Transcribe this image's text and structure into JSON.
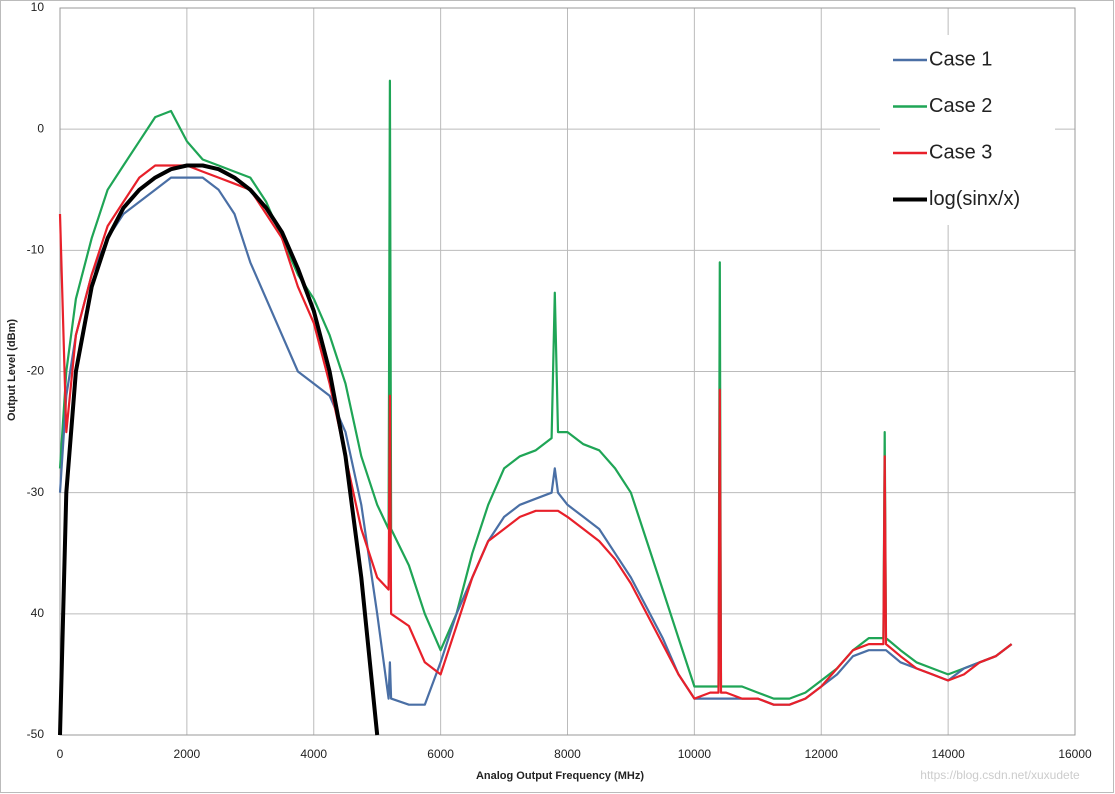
{
  "chart_data": {
    "type": "line",
    "xlabel": "Analog Output Frequency (MHz)",
    "ylabel": "Output Level (dBm)",
    "watermark": "https://blog.csdn.net/xuxudete",
    "xlim": [
      0,
      16000
    ],
    "ylim": [
      -50,
      10
    ],
    "xticks": [
      0,
      2000,
      4000,
      6000,
      8000,
      10000,
      12000,
      14000,
      16000
    ],
    "yticks": [
      -50,
      {
        "value": -40,
        "label": "40"
      },
      -30,
      -20,
      -10,
      0,
      10
    ],
    "grid": true,
    "legend": "upper right",
    "x": [
      0,
      100,
      250,
      500,
      750,
      1000,
      1250,
      1500,
      1750,
      2000,
      2250,
      2500,
      2750,
      3000,
      3250,
      3500,
      3750,
      4000,
      4250,
      4500,
      4750,
      5000,
      5180,
      5200,
      5220,
      5500,
      5750,
      6000,
      6250,
      6500,
      6750,
      7000,
      7250,
      7500,
      7750,
      7800,
      7850,
      8000,
      8250,
      8500,
      8750,
      9000,
      9250,
      9500,
      9750,
      10000,
      10250,
      10380,
      10400,
      10420,
      10500,
      10750,
      11000,
      11250,
      11500,
      11750,
      12000,
      12250,
      12500,
      12750,
      12980,
      13000,
      13020,
      13250,
      13500,
      13750,
      14000,
      14250,
      14500,
      14750,
      15000
    ],
    "series": [
      {
        "name": "Case 1",
        "color": "#4a6fa5",
        "values": [
          -30,
          -22,
          -17,
          -12,
          -9,
          -7,
          -6,
          -5,
          -4,
          -4,
          -4,
          -5,
          -7,
          -11,
          -14,
          -17,
          -20,
          -21,
          -22,
          -25,
          -31,
          -40,
          -47,
          -44,
          -47,
          -47.5,
          -47.5,
          -44,
          -40,
          -37,
          -34,
          -32,
          -31,
          -30.5,
          -30,
          -28,
          -30,
          -31,
          -32,
          -33,
          -35,
          -37,
          -39.5,
          -42,
          -45,
          -47,
          -47,
          -47,
          -47,
          -47,
          -47,
          -47,
          -47,
          -47.5,
          -47.5,
          -47,
          -46,
          -45,
          -43.5,
          -43,
          -43,
          -43,
          -43,
          -44,
          -44.5,
          -45,
          -45.5,
          -44.5,
          -44,
          -43.5,
          -42.5
        ]
      },
      {
        "name": "Case 2",
        "color": "#1fa556",
        "values": [
          -28,
          -20,
          -14,
          -9,
          -5,
          -3,
          -1,
          1,
          1.5,
          -1,
          -2.5,
          -3,
          -3.5,
          -4,
          -6,
          -9,
          -12,
          -14,
          -17,
          -21,
          -27,
          -31,
          -33,
          4,
          -33,
          -36,
          -40,
          -43,
          -40,
          -35,
          -31,
          -28,
          -27,
          -26.5,
          -25.5,
          -13.5,
          -25,
          -25,
          -26,
          -26.5,
          -28,
          -30,
          -34,
          -38,
          -42,
          -46,
          -46,
          -46,
          -11,
          -46,
          -46,
          -46,
          -46.5,
          -47,
          -47,
          -46.5,
          -45.5,
          -44.5,
          -43,
          -42,
          -42,
          -25,
          -42,
          -43,
          -44,
          -44.5,
          -45,
          -44.5,
          -44,
          -43.5,
          -42.5
        ]
      },
      {
        "name": "Case 3",
        "color": "#e8202a",
        "values": [
          -7,
          -25,
          -17,
          -12,
          -8,
          -6,
          -4,
          -3,
          -3,
          -3,
          -3.5,
          -4,
          -4.5,
          -5,
          -7,
          -9,
          -13,
          -16,
          -21,
          -27,
          -33,
          -37,
          -38,
          -22,
          -40,
          -41,
          -44,
          -45,
          -41,
          -37,
          -34,
          -33,
          -32,
          -31.5,
          -31.5,
          -31.5,
          -31.5,
          -32,
          -33,
          -34,
          -35.5,
          -37.5,
          -40,
          -42.5,
          -45,
          -47,
          -46.5,
          -46.5,
          -21.5,
          -46.5,
          -46.5,
          -47,
          -47,
          -47.5,
          -47.5,
          -47,
          -46,
          -44.5,
          -43,
          -42.5,
          -42.5,
          -27,
          -42.5,
          -43.5,
          -44.5,
          -45,
          -45.5,
          -45,
          -44,
          -43.5,
          -42.5
        ]
      },
      {
        "name": "log(sinx/x)",
        "color": "#000000",
        "values": [
          -50,
          -30,
          -20,
          -13,
          -9,
          -6.5,
          -5,
          -4,
          -3.3,
          -3,
          -3,
          -3.3,
          -4,
          -5,
          -6.5,
          -8.5,
          -11.5,
          -15,
          -20,
          -27,
          -37,
          -50,
          null,
          null,
          null,
          null,
          null,
          null,
          null,
          null,
          null,
          null,
          null,
          null,
          null,
          null,
          null,
          null,
          null,
          null,
          null,
          null,
          null,
          null,
          null,
          null,
          null,
          null,
          null,
          null,
          null,
          null,
          null,
          null,
          null,
          null,
          null,
          null,
          null,
          null,
          null,
          null,
          null,
          null,
          null,
          null,
          null,
          null,
          null,
          null,
          null
        ]
      }
    ]
  }
}
